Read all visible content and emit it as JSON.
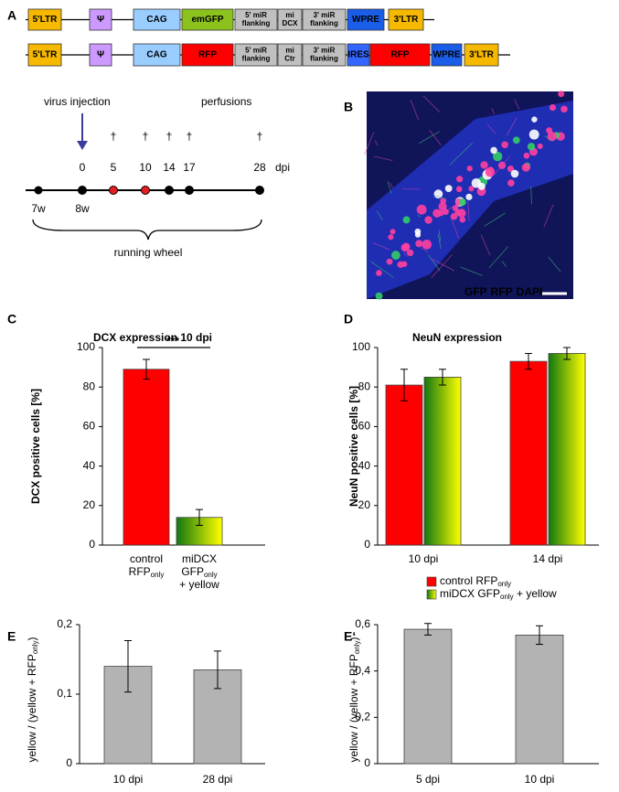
{
  "diagram": {
    "panel": "A",
    "constructs": [
      [
        {
          "lines": [
            "5'LTR"
          ],
          "color": "#f6b900",
          "ink": "#000"
        },
        {
          "lines": [
            "Ψ"
          ],
          "color": "#cc99ff",
          "ink": "#000"
        },
        {
          "lines": [
            "CAG"
          ],
          "color": "#99ccff",
          "ink": "#000"
        },
        {
          "lines": [
            "emGFP"
          ],
          "color": "#8cc21e",
          "ink": "#000"
        },
        {
          "lines": [
            "5' miR",
            "flanking"
          ],
          "color": "#c0c0c0",
          "ink": "#000"
        },
        {
          "lines": [
            "mi",
            "DCX"
          ],
          "color": "#c0c0c0",
          "ink": "#000"
        },
        {
          "lines": [
            "3' miR",
            "flanking"
          ],
          "color": "#c0c0c0",
          "ink": "#000"
        },
        {
          "lines": [
            "WPRE"
          ],
          "color": "#1a5de8",
          "ink": "#000"
        },
        {
          "lines": [
            "3'LTR"
          ],
          "color": "#f6b900",
          "ink": "#000"
        }
      ],
      [
        {
          "lines": [
            "5'LTR"
          ],
          "color": "#f6b900",
          "ink": "#000"
        },
        {
          "lines": [
            "Ψ"
          ],
          "color": "#cc99ff",
          "ink": "#000"
        },
        {
          "lines": [
            "CAG"
          ],
          "color": "#99ccff",
          "ink": "#000"
        },
        {
          "lines": [
            "RFP"
          ],
          "color": "#ff0000",
          "ink": "#fff"
        },
        {
          "lines": [
            "5' miR",
            "flanking"
          ],
          "color": "#c0c0c0",
          "ink": "#000"
        },
        {
          "lines": [
            "mi",
            "Ctr"
          ],
          "color": "#c0c0c0",
          "ink": "#000"
        },
        {
          "lines": [
            "3' miR",
            "flanking"
          ],
          "color": "#c0c0c0",
          "ink": "#000"
        },
        {
          "lines": [
            "IRES"
          ],
          "color": "#3366ff",
          "ink": "#fff"
        },
        {
          "lines": [
            "RFP"
          ],
          "color": "#ff0000",
          "ink": "#fff"
        },
        {
          "lines": [
            "WPRE"
          ],
          "color": "#1a5de8",
          "ink": "#000"
        },
        {
          "lines": [
            "3'LTR"
          ],
          "color": "#f6b900",
          "ink": "#000"
        }
      ]
    ],
    "timeline": {
      "injection": "virus injection",
      "perfusions": "perfusions",
      "dagger": "†",
      "days": [
        {
          "label": "0",
          "color": "#000",
          "dot": "#000"
        },
        {
          "label": "5",
          "color": "#d42020",
          "dot": "#e31e1e"
        },
        {
          "label": "10",
          "color": "#000",
          "dot": "#e31e1e"
        },
        {
          "label": "14",
          "color": "#000",
          "dot": "#000"
        },
        {
          "label": "17",
          "color": "#000",
          "dot": "#000"
        },
        {
          "label": "28",
          "color": "#000",
          "dot": "#000"
        }
      ],
      "unit": "dpi",
      "weeks": [
        "7w",
        "8w"
      ],
      "wheel": "running wheel",
      "arrow_color": "#3b3b9a"
    }
  },
  "image": {
    "panel": "B",
    "labels": [
      {
        "t": "GFP",
        "color": "#22dd22"
      },
      {
        "t": "RFP",
        "color": "#ff2020"
      },
      {
        "t": "DAPI",
        "color": "#2a3cff"
      }
    ]
  },
  "chart_data": [
    {
      "type": "bar",
      "panel": "C",
      "title": "DCX expression 10 dpi",
      "ylabel": [
        {
          "t": "DCX positive cells [%]"
        }
      ],
      "categories": [
        [
          [
            {
              "t": "control"
            }
          ],
          [
            {
              "t": "RFP"
            },
            {
              "t": "only",
              "sub": true
            }
          ]
        ],
        [
          [
            {
              "t": "miDCX"
            }
          ],
          [
            {
              "t": "GFP"
            },
            {
              "t": "only",
              "sub": true
            }
          ],
          [
            {
              "t": "+ yellow"
            }
          ]
        ]
      ],
      "values": [
        89,
        14
      ],
      "errors": [
        5,
        4
      ],
      "colors": [
        "#ff0000",
        [
          "#117711",
          "#ffff00"
        ]
      ],
      "annotation": "***",
      "ylim": [
        0,
        100
      ],
      "yticks": [
        0,
        20,
        40,
        60,
        80,
        100
      ]
    },
    {
      "type": "grouped_bar",
      "panel": "D",
      "title": "NeuN expression",
      "ylabel": [
        {
          "t": "NeuN positive cells [%]"
        }
      ],
      "categories": [
        [
          [
            {
              "t": "10 dpi"
            }
          ]
        ],
        [
          [
            {
              "t": "14 dpi"
            }
          ]
        ]
      ],
      "series": [
        {
          "name": [
            {
              "t": "control RFP"
            },
            {
              "t": "only",
              "sub": true
            }
          ],
          "color": "#ff0000",
          "values": [
            81,
            93
          ],
          "errors": [
            8,
            4
          ]
        },
        {
          "name": [
            {
              "t": "miDCX GFP"
            },
            {
              "t": "only",
              "sub": true
            },
            {
              "t": " + yellow"
            }
          ],
          "color": [
            "#117711",
            "#ffff00"
          ],
          "values": [
            85,
            97
          ],
          "errors": [
            4,
            3
          ]
        }
      ],
      "ylim": [
        0,
        100
      ],
      "yticks": [
        0,
        20,
        40,
        60,
        80,
        100
      ]
    },
    {
      "type": "bar",
      "panel": "E",
      "ylabel": [
        {
          "t": "yellow / (yellow + RFP"
        },
        {
          "t": "only",
          "sub": true
        },
        {
          "t": ")"
        }
      ],
      "categories": [
        [
          [
            {
              "t": "10 dpi"
            }
          ]
        ],
        [
          [
            {
              "t": "28 dpi"
            }
          ]
        ]
      ],
      "values": [
        0.14,
        0.135
      ],
      "errors": [
        0.037,
        0.027
      ],
      "colors": [
        "#b3b3b3",
        "#b3b3b3"
      ],
      "ylim": [
        0,
        0.2
      ],
      "yticks": [
        0,
        {
          "value": 0.1,
          "label": "0,1"
        },
        {
          "value": 0.2,
          "label": "0,2"
        }
      ]
    },
    {
      "type": "bar",
      "panel": "E‘",
      "ylabel": [
        {
          "t": "yellow / (yellow + RFP"
        },
        {
          "t": "only",
          "sub": true
        },
        {
          "t": ")"
        }
      ],
      "categories": [
        [
          [
            {
              "t": "5 dpi"
            }
          ]
        ],
        [
          [
            {
              "t": "10 dpi"
            }
          ]
        ]
      ],
      "values": [
        0.58,
        0.555
      ],
      "errors": [
        0.025,
        0.04
      ],
      "colors": [
        "#b3b3b3",
        "#b3b3b3"
      ],
      "ylim": [
        0,
        0.6
      ],
      "yticks": [
        0,
        {
          "value": 0.2,
          "label": "0,2"
        },
        {
          "value": 0.4,
          "label": "0,4"
        },
        {
          "value": 0.6,
          "label": "0,6"
        }
      ]
    }
  ]
}
